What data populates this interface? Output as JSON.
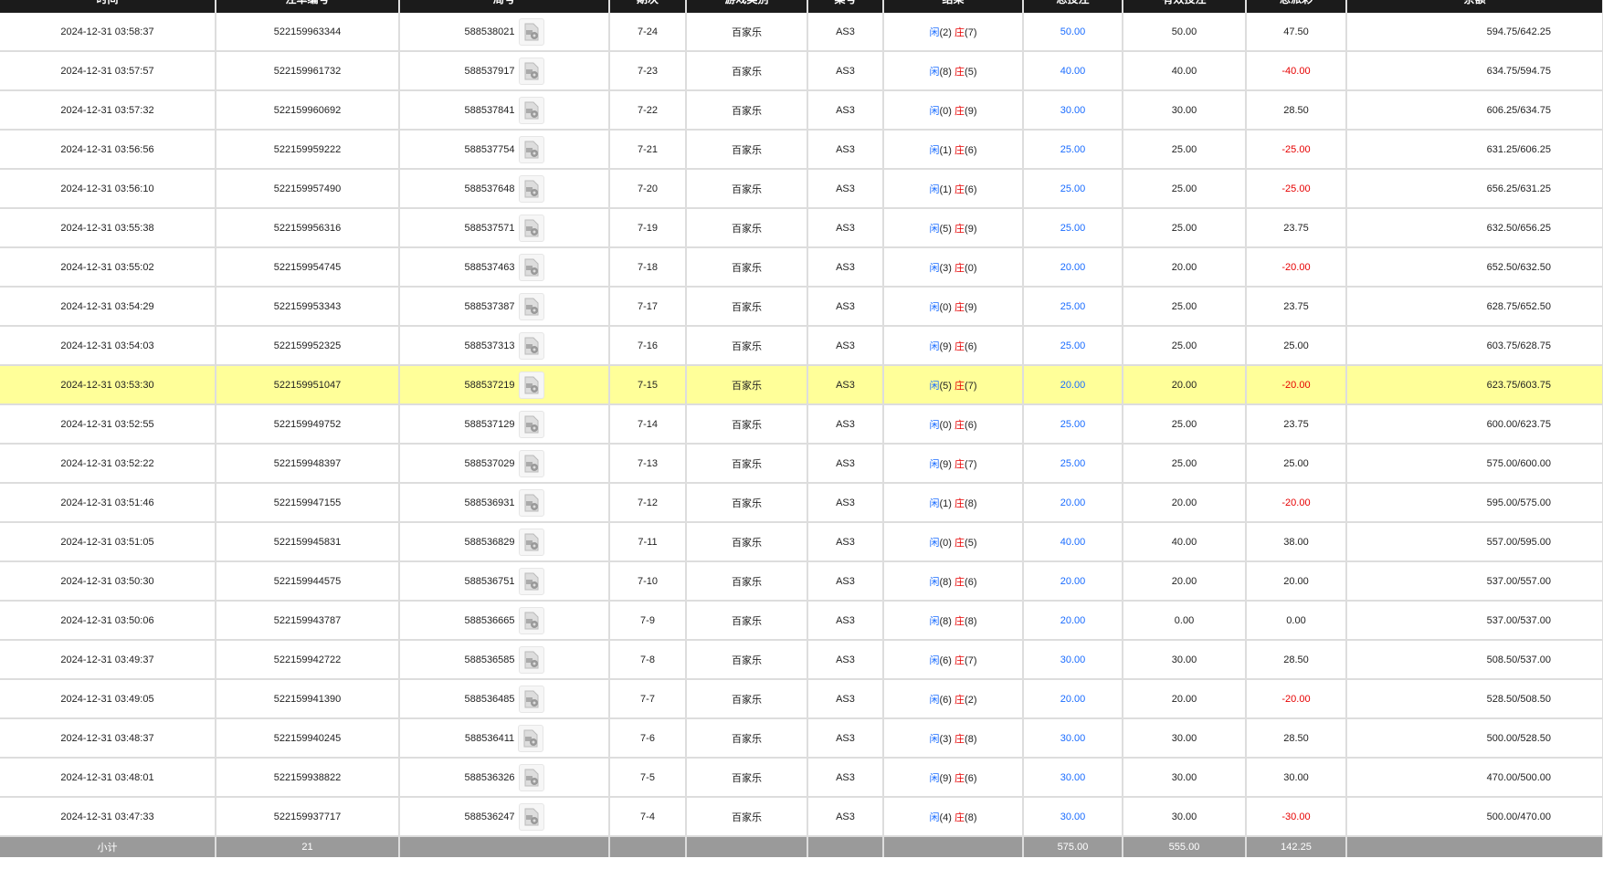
{
  "headers": [
    "时间",
    "注单编号",
    "局号",
    "期次",
    "游戏类别",
    "桌号",
    "结果",
    "总投注",
    "有效投注",
    "总派彩",
    "余额"
  ],
  "player_label": "闲",
  "banker_label": "庄",
  "colors": {
    "header_bg": "#1b1b1b",
    "highlight": "#ffff99",
    "positive": "#1a6cff",
    "negative": "#e60000",
    "subtotal_bg": "#9a9a9a"
  },
  "rows": [
    [
      "2024-12-31 03:58:37",
      "522159963344",
      "588538021",
      "7-24",
      "百家乐",
      "AS3",
      "2",
      "7",
      "50.00",
      "50.00",
      "47.50",
      "594.75/642.25"
    ],
    [
      "2024-12-31 03:57:57",
      "522159961732",
      "588537917",
      "7-23",
      "百家乐",
      "AS3",
      "8",
      "5",
      "40.00",
      "40.00",
      "-40.00",
      "634.75/594.75"
    ],
    [
      "2024-12-31 03:57:32",
      "522159960692",
      "588537841",
      "7-22",
      "百家乐",
      "AS3",
      "0",
      "9",
      "30.00",
      "30.00",
      "28.50",
      "606.25/634.75"
    ],
    [
      "2024-12-31 03:56:56",
      "522159959222",
      "588537754",
      "7-21",
      "百家乐",
      "AS3",
      "1",
      "6",
      "25.00",
      "25.00",
      "-25.00",
      "631.25/606.25"
    ],
    [
      "2024-12-31 03:56:10",
      "522159957490",
      "588537648",
      "7-20",
      "百家乐",
      "AS3",
      "1",
      "6",
      "25.00",
      "25.00",
      "-25.00",
      "656.25/631.25"
    ],
    [
      "2024-12-31 03:55:38",
      "522159956316",
      "588537571",
      "7-19",
      "百家乐",
      "AS3",
      "5",
      "9",
      "25.00",
      "25.00",
      "23.75",
      "632.50/656.25"
    ],
    [
      "2024-12-31 03:55:02",
      "522159954745",
      "588537463",
      "7-18",
      "百家乐",
      "AS3",
      "3",
      "0",
      "20.00",
      "20.00",
      "-20.00",
      "652.50/632.50"
    ],
    [
      "2024-12-31 03:54:29",
      "522159953343",
      "588537387",
      "7-17",
      "百家乐",
      "AS3",
      "0",
      "9",
      "25.00",
      "25.00",
      "23.75",
      "628.75/652.50"
    ],
    [
      "2024-12-31 03:54:03",
      "522159952325",
      "588537313",
      "7-16",
      "百家乐",
      "AS3",
      "9",
      "6",
      "25.00",
      "25.00",
      "25.00",
      "603.75/628.75"
    ],
    [
      "2024-12-31 03:53:30",
      "522159951047",
      "588537219",
      "7-15",
      "百家乐",
      "AS3",
      "5",
      "7",
      "20.00",
      "20.00",
      "-20.00",
      "623.75/603.75"
    ],
    [
      "2024-12-31 03:52:55",
      "522159949752",
      "588537129",
      "7-14",
      "百家乐",
      "AS3",
      "0",
      "6",
      "25.00",
      "25.00",
      "23.75",
      "600.00/623.75"
    ],
    [
      "2024-12-31 03:52:22",
      "522159948397",
      "588537029",
      "7-13",
      "百家乐",
      "AS3",
      "9",
      "7",
      "25.00",
      "25.00",
      "25.00",
      "575.00/600.00"
    ],
    [
      "2024-12-31 03:51:46",
      "522159947155",
      "588536931",
      "7-12",
      "百家乐",
      "AS3",
      "1",
      "8",
      "20.00",
      "20.00",
      "-20.00",
      "595.00/575.00"
    ],
    [
      "2024-12-31 03:51:05",
      "522159945831",
      "588536829",
      "7-11",
      "百家乐",
      "AS3",
      "0",
      "5",
      "40.00",
      "40.00",
      "38.00",
      "557.00/595.00"
    ],
    [
      "2024-12-31 03:50:30",
      "522159944575",
      "588536751",
      "7-10",
      "百家乐",
      "AS3",
      "8",
      "6",
      "20.00",
      "20.00",
      "20.00",
      "537.00/557.00"
    ],
    [
      "2024-12-31 03:50:06",
      "522159943787",
      "588536665",
      "7-9",
      "百家乐",
      "AS3",
      "8",
      "8",
      "20.00",
      "0.00",
      "0.00",
      "537.00/537.00"
    ],
    [
      "2024-12-31 03:49:37",
      "522159942722",
      "588536585",
      "7-8",
      "百家乐",
      "AS3",
      "6",
      "7",
      "30.00",
      "30.00",
      "28.50",
      "508.50/537.00"
    ],
    [
      "2024-12-31 03:49:05",
      "522159941390",
      "588536485",
      "7-7",
      "百家乐",
      "AS3",
      "6",
      "2",
      "20.00",
      "20.00",
      "-20.00",
      "528.50/508.50"
    ],
    [
      "2024-12-31 03:48:37",
      "522159940245",
      "588536411",
      "7-6",
      "百家乐",
      "AS3",
      "3",
      "8",
      "30.00",
      "30.00",
      "28.50",
      "500.00/528.50"
    ],
    [
      "2024-12-31 03:48:01",
      "522159938822",
      "588536326",
      "7-5",
      "百家乐",
      "AS3",
      "9",
      "6",
      "30.00",
      "30.00",
      "30.00",
      "470.00/500.00"
    ],
    [
      "2024-12-31 03:47:33",
      "522159937717",
      "588536247",
      "7-4",
      "百家乐",
      "AS3",
      "4",
      "8",
      "30.00",
      "30.00",
      "-30.00",
      "500.00/470.00"
    ]
  ],
  "highlighted_row": 9,
  "subtotal": {
    "label": "小计",
    "count": "21",
    "total_bet": "575.00",
    "valid_bet": "555.00",
    "payout": "142.25"
  }
}
